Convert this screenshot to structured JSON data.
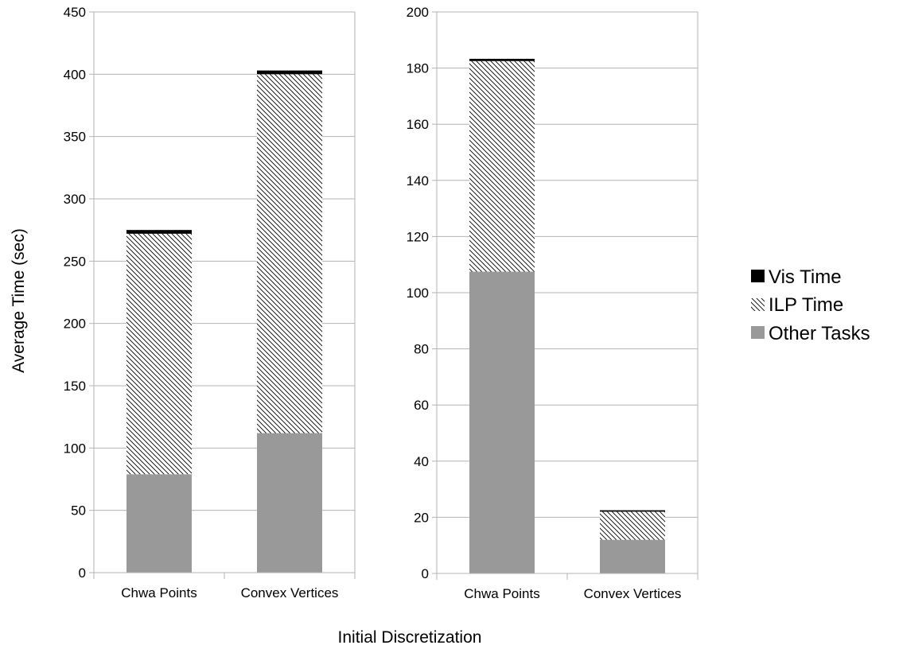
{
  "chart_data": [
    {
      "type": "bar",
      "stacked": true,
      "categories": [
        "Chwa Points",
        "Convex Vertices"
      ],
      "series": [
        {
          "name": "Other Tasks",
          "values": [
            79,
            112
          ]
        },
        {
          "name": "ILP Time",
          "values": [
            193,
            288
          ]
        },
        {
          "name": "Vis Time",
          "values": [
            3,
            3
          ]
        }
      ],
      "ylabel": "Average Time (sec)",
      "ylim": [
        0,
        450
      ],
      "yticks": [
        0,
        50,
        100,
        150,
        200,
        250,
        300,
        350,
        400,
        450
      ],
      "grid": true
    },
    {
      "type": "bar",
      "stacked": true,
      "categories": [
        "Chwa Points",
        "Convex Vertices"
      ],
      "series": [
        {
          "name": "Other Tasks",
          "values": [
            107.5,
            12
          ]
        },
        {
          "name": "ILP Time",
          "values": [
            75,
            10
          ]
        },
        {
          "name": "Vis Time",
          "values": [
            0.8,
            0.5
          ]
        }
      ],
      "ylim": [
        0,
        200
      ],
      "yticks": [
        0,
        20,
        40,
        60,
        80,
        100,
        120,
        140,
        160,
        180,
        200
      ],
      "grid": true
    }
  ],
  "xlabel": "Initial Discretization",
  "ylabel": "Average Time (sec)",
  "legend": {
    "position": "right",
    "items": [
      {
        "name": "Vis Time",
        "style": "solid-black"
      },
      {
        "name": "ILP Time",
        "style": "hatched"
      },
      {
        "name": "Other Tasks",
        "style": "solid-gray"
      }
    ]
  },
  "colors": {
    "other_tasks": "#999999",
    "ilp_hatch": "#000000",
    "vis_time": "#000000",
    "gridline": "#b3b3b3",
    "axis": "#b3b3b3"
  }
}
